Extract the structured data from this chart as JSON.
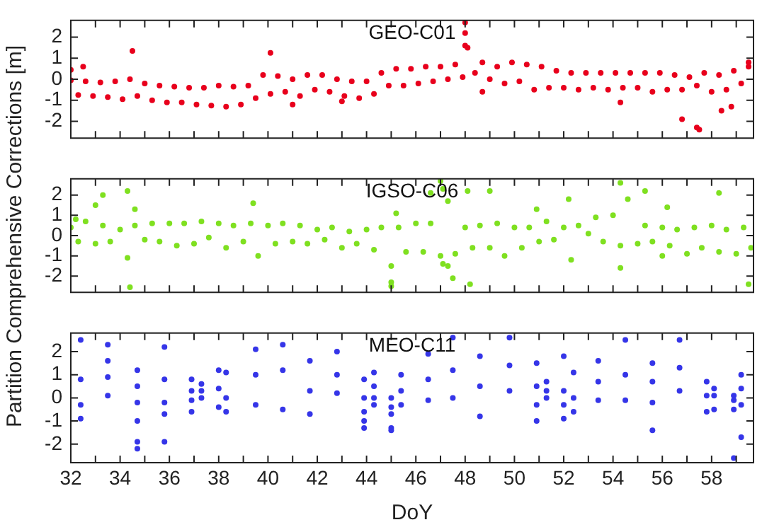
{
  "chart_data": [
    {
      "type": "scatter",
      "title": "GEO-C01",
      "marker": "circle",
      "tick_labels": "y",
      "xlim": [
        32,
        59.7
      ],
      "ylim": [
        -2.8,
        2.8
      ],
      "yticks": [
        -2,
        -1,
        0,
        1,
        2
      ],
      "xticks": [
        32,
        {
          "value": 33,
          "label": null
        },
        34,
        {
          "value": 35,
          "label": null
        },
        36,
        {
          "value": 37,
          "label": null
        },
        38,
        {
          "value": 39,
          "label": null
        },
        40,
        {
          "value": 41,
          "label": null
        },
        42,
        {
          "value": 43,
          "label": null
        },
        44,
        {
          "value": 45,
          "label": null
        },
        46,
        {
          "value": 47,
          "label": null
        },
        48,
        {
          "value": 49,
          "label": null
        },
        50,
        {
          "value": 51,
          "label": null
        },
        52,
        {
          "value": 53,
          "label": null
        },
        54,
        {
          "value": 55,
          "label": null
        },
        56,
        {
          "value": 57,
          "label": null
        },
        58,
        {
          "value": 59,
          "label": null
        }
      ],
      "series": [
        {
          "color": "#e8001c",
          "x": [
            32,
            32.3,
            32.6,
            32.9,
            33.2,
            33.5,
            33.8,
            34.1,
            34.4,
            34.7,
            35,
            35.3,
            35.6,
            35.9,
            36.2,
            36.5,
            36.8,
            37.1,
            37.4,
            37.7,
            38,
            38.3,
            38.6,
            38.9,
            39.2,
            39.5,
            39.8,
            40.1,
            40.4,
            40.7,
            41,
            41.3,
            41.6,
            41.9,
            42.2,
            42.5,
            42.8,
            43.1,
            43.4,
            43.7,
            44,
            44.3,
            44.6,
            44.9,
            45.2,
            45.5,
            45.8,
            46.1,
            46.4,
            46.7,
            47,
            47.3,
            47.6,
            47.9,
            48.1,
            48.4,
            48.7,
            49,
            49.3,
            49.6,
            49.9,
            50.2,
            50.5,
            50.8,
            51.1,
            51.4,
            51.7,
            52,
            52.3,
            52.6,
            52.9,
            53.2,
            53.5,
            53.8,
            54.1,
            54.4,
            54.7,
            55,
            55.3,
            55.6,
            55.9,
            56.2,
            56.5,
            56.8,
            57.1,
            57.4,
            57.7,
            58,
            58.3,
            58.6,
            58.9,
            59.2,
            59.5,
            32,
            32.5,
            34.5,
            40.1,
            41,
            43,
            48,
            48,
            48,
            48.7,
            54.3,
            56.8,
            57.4,
            57.5,
            58.4,
            58.8,
            59.5
          ],
          "values": [
            -0.05,
            -0.75,
            -0.1,
            -0.8,
            -0.15,
            -0.85,
            -0.1,
            -0.95,
            0,
            -0.8,
            -0.2,
            -1,
            -0.3,
            -1.1,
            -0.35,
            -1.1,
            -0.4,
            -1.2,
            -0.4,
            -1.25,
            -0.3,
            -1.3,
            -0.35,
            -1.2,
            -0.3,
            -0.9,
            0.2,
            -0.7,
            0.15,
            -0.6,
            0,
            -0.8,
            0.2,
            -0.5,
            0.2,
            -0.6,
            0,
            -0.8,
            -0.1,
            -0.9,
            -0.1,
            -0.7,
            0.3,
            -0.3,
            0.5,
            -0.3,
            0.5,
            -0.2,
            0.6,
            -0.1,
            0.6,
            0,
            0.7,
            0.1,
            1.5,
            0.3,
            0.8,
            0,
            0.6,
            -0.2,
            0.8,
            -0.1,
            0.7,
            -0.5,
            0.6,
            -0.4,
            0.4,
            -0.4,
            0.3,
            -0.5,
            0.3,
            -0.4,
            0.3,
            -0.5,
            0.3,
            -0.4,
            0.3,
            -0.4,
            0.3,
            -0.6,
            0.3,
            -0.5,
            0.2,
            -0.5,
            0.1,
            -0.3,
            0.3,
            -0.6,
            0.2,
            -0.5,
            0.4,
            -0.2,
            0.6,
            0.45,
            0.6,
            1.35,
            1.25,
            -1.2,
            -1.05,
            2.7,
            2.2,
            1.6,
            -0.6,
            -1.1,
            -1.9,
            -2.3,
            -2.4,
            -1.5,
            -1.3,
            0.8
          ]
        }
      ]
    },
    {
      "type": "scatter",
      "title": "IGSO-C06",
      "ylabel": "Partition Comprehensive Corrections [m]",
      "marker": "circle",
      "tick_labels": "y",
      "xlim": [
        32,
        59.7
      ],
      "ylim": [
        -2.8,
        2.8
      ],
      "yticks": [
        -2,
        -1,
        0,
        1,
        2
      ],
      "xticks": [
        32,
        {
          "value": 33,
          "label": null
        },
        34,
        {
          "value": 35,
          "label": null
        },
        36,
        {
          "value": 37,
          "label": null
        },
        38,
        {
          "value": 39,
          "label": null
        },
        40,
        {
          "value": 41,
          "label": null
        },
        42,
        {
          "value": 43,
          "label": null
        },
        44,
        {
          "value": 45,
          "label": null
        },
        46,
        {
          "value": 47,
          "label": null
        },
        48,
        {
          "value": 49,
          "label": null
        },
        50,
        {
          "value": 51,
          "label": null
        },
        52,
        {
          "value": 53,
          "label": null
        },
        54,
        {
          "value": 55,
          "label": null
        },
        56,
        {
          "value": 57,
          "label": null
        },
        58,
        {
          "value": 59,
          "label": null
        }
      ],
      "series": [
        {
          "color": "#7fe020",
          "x": [
            32,
            32.3,
            32.6,
            33,
            33.3,
            33.6,
            34,
            34.3,
            34.6,
            35,
            35.3,
            35.6,
            36,
            36.3,
            36.6,
            37,
            37.3,
            37.6,
            38,
            38.3,
            38.6,
            39,
            39.3,
            39.6,
            40,
            40.3,
            40.6,
            41,
            41.3,
            41.6,
            42,
            42.3,
            42.6,
            43,
            43.3,
            43.6,
            44,
            44.3,
            44.6,
            45,
            45.3,
            45.6,
            46,
            46.3,
            46.6,
            47,
            47.3,
            47.6,
            48,
            48.3,
            48.6,
            49,
            49.3,
            49.6,
            50,
            50.3,
            50.6,
            51,
            51.3,
            51.6,
            52,
            52.3,
            52.6,
            53,
            53.3,
            53.6,
            54,
            54.3,
            54.6,
            55,
            55.3,
            55.6,
            56,
            56.3,
            56.6,
            57,
            57.3,
            57.6,
            58,
            58.3,
            58.6,
            59,
            59.3,
            59.6,
            32.2,
            33,
            33.3,
            34.3,
            34.4,
            34.6,
            39.4,
            45,
            45,
            45.2,
            46.6,
            47,
            47.1,
            47.1,
            47.3,
            47.5,
            48.1,
            48.2,
            49,
            50.9,
            52.2,
            54.3,
            54.3,
            55.3,
            56,
            56.2,
            58.3,
            59.5
          ],
          "values": [
            0.4,
            -0.3,
            0.7,
            -0.4,
            0.5,
            -0.3,
            0.3,
            -1.1,
            0.5,
            -0.2,
            0.6,
            -0.3,
            0.6,
            -0.5,
            0.6,
            -0.4,
            0.7,
            -0.1,
            0.6,
            -0.6,
            0.5,
            -0.3,
            0.6,
            -1,
            0.5,
            -0.4,
            0.6,
            -0.3,
            0.5,
            -0.4,
            0.3,
            -0.2,
            0.4,
            -0.6,
            0.2,
            -0.4,
            0.3,
            -0.7,
            0.4,
            -1.5,
            0.4,
            -0.8,
            0.6,
            -0.8,
            0.6,
            -1,
            1.7,
            -0.9,
            0.4,
            -0.6,
            0.5,
            -0.6,
            0.6,
            -1,
            0.4,
            -0.6,
            0.4,
            -0.3,
            0.7,
            -0.2,
            0.4,
            -1.2,
            0.5,
            0.1,
            0.9,
            -0.3,
            1,
            -0.5,
            1.8,
            -0.4,
            0.5,
            -0.3,
            0.4,
            -0.5,
            0.3,
            -0.9,
            0.4,
            -0.6,
            0.5,
            -0.8,
            0.3,
            -0.9,
            0.4,
            -0.6,
            0.8,
            1.5,
            2,
            2.2,
            -2.55,
            1.3,
            1.6,
            -2.3,
            -2.5,
            1.1,
            2.1,
            2.7,
            2.3,
            -1.4,
            -1.5,
            -2.1,
            2.2,
            -2.4,
            2.2,
            1.3,
            1.8,
            -1.6,
            2.6,
            2.2,
            -1,
            1.4,
            2.1,
            -2.4
          ]
        }
      ]
    },
    {
      "type": "scatter",
      "title": "MEO-C11",
      "xlabel": "DoY",
      "marker": "circle",
      "xlim": [
        32,
        59.7
      ],
      "ylim": [
        -2.8,
        2.8
      ],
      "yticks": [
        -2,
        -1,
        0,
        1,
        2
      ],
      "xticks": [
        32,
        {
          "value": 33,
          "label": null
        },
        34,
        {
          "value": 35,
          "label": null
        },
        36,
        {
          "value": 37,
          "label": null
        },
        38,
        {
          "value": 39,
          "label": null
        },
        40,
        {
          "value": 41,
          "label": null
        },
        42,
        {
          "value": 43,
          "label": null
        },
        44,
        {
          "value": 45,
          "label": null
        },
        46,
        {
          "value": 47,
          "label": null
        },
        48,
        {
          "value": 49,
          "label": null
        },
        50,
        {
          "value": 51,
          "label": null
        },
        52,
        {
          "value": 53,
          "label": null
        },
        54,
        {
          "value": 55,
          "label": null
        },
        56,
        {
          "value": 57,
          "label": null
        },
        58,
        {
          "value": 59,
          "label": null
        }
      ],
      "series": [
        {
          "color": "#3535e8",
          "x": [
            32.4,
            32.4,
            32.4,
            32.4,
            33.5,
            33.5,
            33.5,
            33.5,
            34.7,
            34.7,
            34.7,
            34.7,
            34.7,
            34.7,
            35.8,
            35.8,
            35.8,
            35.8,
            35.8,
            36.9,
            36.9,
            36.9,
            36.9,
            37.3,
            37.3,
            37.3,
            38,
            38,
            38,
            38.3,
            38.3,
            38.3,
            39.5,
            39.5,
            39.5,
            40.6,
            40.6,
            40.6,
            41.7,
            41.7,
            41.7,
            42.8,
            42.8,
            42.8,
            43.9,
            43.9,
            43.9,
            43.9,
            43.9,
            44.3,
            44.3,
            44.3,
            44.3,
            45,
            45,
            45,
            45,
            45,
            45.4,
            45.4,
            45.4,
            46.5,
            46.5,
            46.5,
            47.5,
            47.5,
            47.5,
            48.6,
            48.6,
            48.6,
            49.8,
            49.8,
            49.8,
            50.9,
            50.9,
            50.9,
            50.9,
            51.3,
            51.3,
            51.3,
            52,
            52,
            52,
            52,
            52.4,
            52.4,
            52.4,
            53.4,
            53.4,
            53.4,
            54.5,
            54.5,
            54.5,
            55.6,
            55.6,
            55.6,
            55.6,
            56.7,
            56.7,
            56.7,
            57.8,
            57.8,
            57.8,
            58.1,
            58.1,
            58.1,
            58.9,
            58.9,
            58.9,
            58.9,
            59.2,
            59.2,
            59.2,
            59.2
          ],
          "values": [
            -0.3,
            0.8,
            2.5,
            -0.9,
            0.1,
            0.9,
            1.6,
            2.3,
            -0.2,
            0.5,
            1.2,
            -1,
            -1.9,
            -2.2,
            -0.2,
            0.8,
            2.2,
            -1.9,
            -0.7,
            -0.1,
            0.3,
            0.8,
            -0.6,
            0,
            0.3,
            0.6,
            -0.4,
            0.4,
            1.2,
            -0.6,
            0,
            1.1,
            -0.3,
            1,
            2.1,
            -0.5,
            1.2,
            2.3,
            -0.7,
            0.3,
            1.6,
            0.2,
            1,
            2,
            -0.6,
            0,
            0.8,
            -1.3,
            -1,
            -0.3,
            0,
            0.5,
            1.1,
            -0.7,
            -0.4,
            0,
            -1.3,
            -1.4,
            -0.3,
            0.3,
            1,
            -0.1,
            0.8,
            1.9,
            0,
            1.2,
            2.6,
            -0.8,
            0.5,
            1.8,
            0.3,
            1.4,
            2.6,
            -0.3,
            0.5,
            1.5,
            -1,
            0,
            0.3,
            0.7,
            -0.9,
            -0.3,
            0.3,
            1.8,
            -0.6,
            0,
            1.1,
            -0.1,
            0.7,
            1.6,
            -0.1,
            1,
            2.5,
            -0.2,
            0.7,
            1.5,
            -1.4,
            0.3,
            1.3,
            2.5,
            -0.6,
            0.1,
            0.7,
            -0.5,
            0.1,
            0.4,
            -0.5,
            -0.1,
            0.1,
            -2.6,
            -0.3,
            0.4,
            1,
            -1.7
          ]
        }
      ]
    }
  ]
}
